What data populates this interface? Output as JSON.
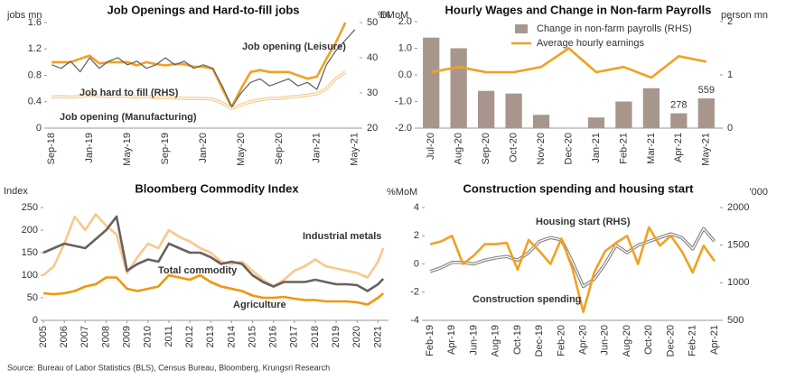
{
  "chart_data": [
    {
      "type": "line",
      "title": "Job Openings and Hard-to-fill jobs",
      "ylabel": "jobs mn",
      "y2label": "DI",
      "categories": [
        "Sep-18",
        null,
        null,
        null,
        "Jan-19",
        null,
        null,
        null,
        "May-19",
        null,
        null,
        null,
        "Sep-19",
        null,
        null,
        null,
        "Jan-20",
        null,
        null,
        null,
        "May-20",
        null,
        null,
        null,
        "Sep-20",
        null,
        null,
        null,
        "Jan-21",
        null,
        null,
        null,
        "May-21"
      ],
      "series": [
        {
          "name": "Job opening (Leisure)",
          "color": "#f2a024",
          "values": [
            1.0,
            1.0,
            1.0,
            1.05,
            1.1,
            0.98,
            1.0,
            1.0,
            1.0,
            0.95,
            1.0,
            0.97,
            0.95,
            0.97,
            0.97,
            0.93,
            0.93,
            0.9,
            0.6,
            0.32,
            0.6,
            0.85,
            0.88,
            0.85,
            0.85,
            0.85,
            0.8,
            0.75,
            0.78,
            1.05,
            1.3,
            1.6,
            null
          ]
        },
        {
          "name": "Job opening (Manufacturing)",
          "color": "#f5c88a",
          "style": "double",
          "values": [
            0.47,
            0.48,
            0.47,
            0.48,
            0.5,
            0.49,
            0.48,
            0.49,
            0.48,
            0.47,
            0.48,
            0.46,
            0.47,
            0.46,
            0.45,
            0.45,
            0.45,
            0.44,
            0.38,
            0.3,
            0.35,
            0.4,
            0.43,
            0.45,
            0.45,
            0.47,
            0.48,
            0.5,
            0.52,
            0.6,
            0.75,
            0.85,
            null
          ]
        },
        {
          "name": "Job hard to fill (RHS)",
          "color": "#666666",
          "axis": "y2",
          "thin": true,
          "values": [
            38,
            37,
            39,
            36,
            40,
            37,
            39,
            40,
            38,
            39,
            37,
            38,
            40,
            38,
            39,
            37,
            38,
            37,
            32,
            26,
            30,
            33,
            34,
            32,
            33,
            34,
            32,
            33,
            31,
            38,
            42,
            45,
            48
          ]
        }
      ],
      "ylim": [
        0,
        1.6
      ],
      "yticks": [
        0,
        0.4,
        0.8,
        1.2,
        1.6
      ],
      "y2lim": [
        20,
        50
      ],
      "y2ticks": [
        20,
        30,
        40,
        50
      ]
    },
    {
      "type": "combo",
      "title": "Hourly Wages and Change in Non-farm Payrolls",
      "ylabel": "%MoM",
      "y2label": "person mn",
      "categories": [
        "Jul-20",
        "Aug-20",
        "Sep-20",
        "Oct-20",
        "Nov-20",
        "Dec-20",
        "Jan-21",
        "Feb-21",
        "Mar-21",
        "Apr-21",
        "May-21"
      ],
      "series": [
        {
          "name": "Change in non-farm payrolls (RHS)",
          "color": "#a8968c",
          "kind": "bar",
          "axis": "y2",
          "values": [
            1.7,
            1.5,
            0.7,
            0.65,
            0.25,
            0,
            0.2,
            0.5,
            0.75,
            0.278,
            0.559
          ],
          "value_labels": [
            null,
            null,
            null,
            null,
            null,
            null,
            null,
            null,
            null,
            "278",
            "559"
          ]
        },
        {
          "name": "Average hourly earnings",
          "color": "#f2a024",
          "kind": "line",
          "values": [
            0.1,
            0.3,
            0.1,
            0.1,
            0.3,
            1.0,
            0.1,
            0.3,
            -0.1,
            0.7,
            0.5
          ]
        }
      ],
      "ylim": [
        -2,
        2
      ],
      "yticks": [
        {
          "value": -2,
          "label": "-2.0"
        },
        {
          "value": -1,
          "label": "-1.0"
        },
        {
          "value": 0,
          "label": "0.0"
        },
        {
          "value": 1,
          "label": "1.0"
        },
        {
          "value": 2,
          "label": "2.0"
        }
      ],
      "y2lim": [
        0,
        2
      ],
      "y2ticks": [
        0,
        1,
        2
      ],
      "legend": "top"
    },
    {
      "type": "line",
      "title": "Bloomberg Commodity Index",
      "ylabel": "Index",
      "x": [
        2005,
        2005.5,
        2006,
        2006.5,
        2007,
        2007.5,
        2008,
        2008.5,
        2009,
        2009.5,
        2010,
        2010.5,
        2011,
        2011.5,
        2012,
        2012.5,
        2013,
        2013.5,
        2014,
        2014.5,
        2015,
        2015.5,
        2016,
        2016.5,
        2017,
        2017.5,
        2018,
        2018.5,
        2019,
        2019.5,
        2020,
        2020.5,
        2021,
        2021.25
      ],
      "series": [
        {
          "name": "Industrial metals",
          "color": "#f8c98c",
          "values": [
            100,
            120,
            170,
            230,
            200,
            235,
            210,
            190,
            105,
            140,
            170,
            160,
            200,
            185,
            175,
            160,
            150,
            130,
            125,
            130,
            110,
            90,
            75,
            90,
            110,
            120,
            135,
            120,
            115,
            110,
            105,
            95,
            130,
            160
          ]
        },
        {
          "name": "Total commodity",
          "color": "#6b6060",
          "values": [
            150,
            160,
            170,
            165,
            160,
            180,
            200,
            230,
            110,
            125,
            135,
            130,
            170,
            160,
            150,
            150,
            140,
            125,
            130,
            125,
            100,
            85,
            75,
            85,
            85,
            85,
            90,
            85,
            80,
            80,
            78,
            65,
            80,
            92
          ]
        },
        {
          "name": "Agriculture",
          "color": "#f0960f",
          "values": [
            60,
            58,
            60,
            65,
            75,
            80,
            95,
            95,
            70,
            65,
            70,
            75,
            100,
            95,
            90,
            100,
            85,
            75,
            70,
            65,
            55,
            50,
            50,
            52,
            48,
            45,
            45,
            42,
            42,
            42,
            40,
            35,
            50,
            60
          ]
        }
      ],
      "xlim": [
        2005,
        2021.5
      ],
      "xticks": [
        2005,
        2006,
        2007,
        2008,
        2009,
        2010,
        2011,
        2012,
        2013,
        2014,
        2015,
        2016,
        2017,
        2018,
        2019,
        2020,
        2021
      ],
      "ylim": [
        0,
        250
      ],
      "yticks": [
        0,
        50,
        100,
        150,
        200,
        250
      ]
    },
    {
      "type": "line",
      "title": "Construction spending and housing start",
      "ylabel": "%MoM",
      "y2label": "'000",
      "categories": [
        "Feb-19",
        null,
        "Apr-19",
        null,
        "Jun-19",
        null,
        "Aug-19",
        null,
        "Oct-19",
        null,
        "Dec-19",
        null,
        "Feb-20",
        null,
        "Apr-20",
        null,
        "Jun-20",
        null,
        "Aug-20",
        null,
        "Oct-20",
        null,
        "Dec-20",
        null,
        "Feb-21",
        null,
        "Apr-21"
      ],
      "series": [
        {
          "name": "Housing start (RHS)",
          "color": "#808080",
          "style": "double",
          "axis": "y2",
          "values": [
            1150,
            1200,
            1270,
            1270,
            1250,
            1300,
            1330,
            1350,
            1300,
            1400,
            1550,
            1600,
            1570,
            1280,
            950,
            1050,
            1250,
            1500,
            1400,
            1500,
            1550,
            1600,
            1650,
            1600,
            1450,
            1720,
            1550
          ]
        },
        {
          "name": "Construction spending",
          "color": "#f2a024",
          "values": [
            1.4,
            1.6,
            2.0,
            0.0,
            0.6,
            1.4,
            1.4,
            1.5,
            -0.4,
            1.7,
            0.9,
            0.0,
            1.8,
            -0.3,
            -3.4,
            -0.6,
            0.9,
            1.5,
            2.0,
            0.0,
            2.6,
            1.3,
            2.0,
            0.9,
            -0.6,
            1.3,
            0.2
          ]
        }
      ],
      "ylim": [
        -4,
        4
      ],
      "yticks": [
        -4,
        -2,
        0,
        2,
        4
      ],
      "y2lim": [
        500,
        2000
      ],
      "y2ticks": [
        500,
        1000,
        1500,
        2000
      ]
    }
  ],
  "source": "Source: Bureau of Labor Statistics (BLS), Census Bureau, Bloomberg, Krungsri Research"
}
